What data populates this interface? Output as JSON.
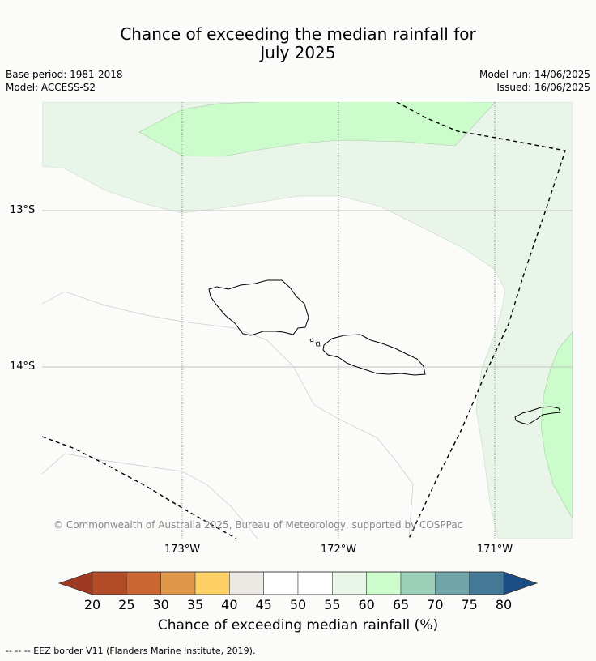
{
  "title": {
    "line1": "Chance of exceeding the median rainfall for",
    "line2": "July 2025"
  },
  "meta": {
    "base_period": "Base period: 1981-2018",
    "model": "Model: ACCESS-S2",
    "model_run": "Model run: 14/06/2025",
    "issued": "Issued: 16/06/2025"
  },
  "axes": {
    "lat_labels": [
      "13°S",
      "14°S"
    ],
    "lon_labels": [
      "173°W",
      "172°W",
      "171°W"
    ]
  },
  "colorbar": {
    "ticks": [
      "20",
      "25",
      "30",
      "35",
      "40",
      "45",
      "50",
      "55",
      "60",
      "65",
      "70",
      "75",
      "80"
    ],
    "colors": [
      "#9e3a22",
      "#b44b28",
      "#cc6631",
      "#e09648",
      "#fdd066",
      "#ebe8e4",
      "#ffffff",
      "#ffffff",
      "#e9f5e9",
      "#ccfccc",
      "#9bcfb7",
      "#6fa4a9",
      "#437896",
      "#1a4d83"
    ],
    "title": "Chance of exceeding median rainfall (%)"
  },
  "map_colors": {
    "band_55_60": "#e9f5e9",
    "band_60_65": "#ccfccc",
    "background": "#fbfcfa"
  },
  "copyright": "© Commonwealth of Australia 2025, Bureau of Meteorology, supported by COSPPac",
  "footnote": "--  --  -- EEZ border V11 (Flanders Marine Institute, 2019)."
}
